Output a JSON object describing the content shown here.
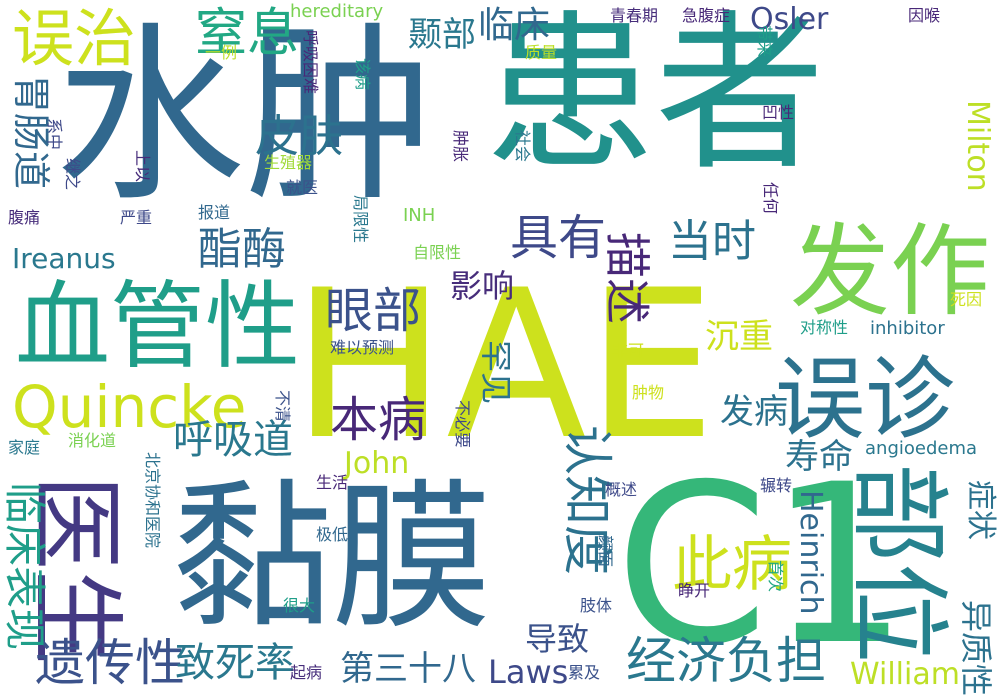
{
  "words": [
    {
      "t": "HAE",
      "c": "#cde11d"
    },
    {
      "t": "患者",
      "c": "#21918c"
    },
    {
      "t": "水肿",
      "c": "#31688e"
    },
    {
      "t": "黏膜",
      "c": "#31688e"
    },
    {
      "t": "C1",
      "c": "#35b779"
    },
    {
      "t": "部位",
      "c": "#26828e"
    },
    {
      "t": "误诊",
      "c": "#2c728e"
    },
    {
      "t": "发作",
      "c": "#7ad151"
    },
    {
      "t": "血管性",
      "c": "#1f9e89"
    },
    {
      "t": "医生",
      "c": "#443983"
    },
    {
      "t": "Quincke",
      "c": "#cde11d"
    },
    {
      "t": "误治",
      "c": "#cde11d"
    },
    {
      "t": "遗传性",
      "c": "#3b528b"
    },
    {
      "t": "认知度",
      "c": "#2c728e"
    },
    {
      "t": "此病",
      "c": "#cde11d"
    },
    {
      "t": "经济负担",
      "c": "#2a788e"
    },
    {
      "t": "眼部",
      "c": "#3b528b"
    },
    {
      "t": "本病",
      "c": "#482878"
    },
    {
      "t": "临床表现",
      "c": "#1f9e89"
    },
    {
      "t": "胃肠道",
      "c": "#31688e"
    },
    {
      "t": "窒息",
      "c": "#22a884"
    },
    {
      "t": "皮肤",
      "c": "#2c728e"
    },
    {
      "t": "酯酶",
      "c": "#31688e"
    },
    {
      "t": "具有",
      "c": "#3e4989"
    },
    {
      "t": "描述",
      "c": "#482878"
    },
    {
      "t": "当时",
      "c": "#2c728e"
    },
    {
      "t": "呼吸道",
      "c": "#2a788e"
    },
    {
      "t": "致死率",
      "c": "#2a788e"
    },
    {
      "t": "第三十八",
      "c": "#31688e"
    },
    {
      "t": "Laws",
      "c": "#3e4989"
    },
    {
      "t": "William",
      "c": "#bddf26"
    },
    {
      "t": "Heinrich",
      "c": "#31688e"
    },
    {
      "t": "Milton",
      "c": "#bddf26"
    },
    {
      "t": "Osler",
      "c": "#3e4989"
    },
    {
      "t": "John",
      "c": "#bddf26"
    },
    {
      "t": "Ireanus",
      "c": "#2a788e"
    },
    {
      "t": "临床",
      "c": "#31688e"
    },
    {
      "t": "颞部",
      "c": "#2a788e"
    },
    {
      "t": "影响",
      "c": "#472d7b"
    },
    {
      "t": "罕见",
      "c": "#2c728e"
    },
    {
      "t": "沉重",
      "c": "#cde11d"
    },
    {
      "t": "发病",
      "c": "#2c728e"
    },
    {
      "t": "寿命",
      "c": "#2c728e"
    },
    {
      "t": "导致",
      "c": "#3b528b"
    },
    {
      "t": "症状",
      "c": "#2c728e"
    },
    {
      "t": "异质性",
      "c": "#2c728e"
    },
    {
      "t": "angioedema",
      "c": "#2a788e"
    },
    {
      "t": "inhibitor",
      "c": "#2c728e"
    },
    {
      "t": "hereditary",
      "c": "#7ad151"
    },
    {
      "t": "青春期",
      "c": "#472d7b"
    },
    {
      "t": "急腹症",
      "c": "#482878"
    },
    {
      "t": "因喉",
      "c": "#482878"
    },
    {
      "t": "质量",
      "c": "#bddf26"
    },
    {
      "t": "一例",
      "c": "#bddf26"
    },
    {
      "t": "呼吸困难",
      "c": "#482878"
    },
    {
      "t": "该病",
      "c": "#1f9e89"
    },
    {
      "t": "带来",
      "c": "#1f9e89"
    },
    {
      "t": "凹性",
      "c": "#482878"
    },
    {
      "t": "社会",
      "c": "#2a788e"
    },
    {
      "t": "肿胀",
      "c": "#482878"
    },
    {
      "t": "系中",
      "c": "#3e4989"
    },
    {
      "t": "继之",
      "c": "#3e4989"
    },
    {
      "t": "上以",
      "c": "#472d7b"
    },
    {
      "t": "生殖器",
      "c": "#a0da39"
    },
    {
      "t": "就医",
      "c": "#3b528b"
    },
    {
      "t": "任何",
      "c": "#482878"
    },
    {
      "t": "腹痛",
      "c": "#472d7b"
    },
    {
      "t": "严重",
      "c": "#3e4989"
    },
    {
      "t": "报道",
      "c": "#31688e"
    },
    {
      "t": "局限性",
      "c": "#2a788e"
    },
    {
      "t": "INH",
      "c": "#7ad151"
    },
    {
      "t": "自限性",
      "c": "#7ad151"
    },
    {
      "t": "死因",
      "c": "#cde11d"
    },
    {
      "t": "对称性",
      "c": "#1f9e89"
    },
    {
      "t": "难以预测",
      "c": "#3b528b"
    },
    {
      "t": "非可",
      "c": "#cde11d"
    },
    {
      "t": "不清",
      "c": "#3b528b"
    },
    {
      "t": "肿物",
      "c": "#cde11d"
    },
    {
      "t": "不必要",
      "c": "#3e4989"
    },
    {
      "t": "家庭",
      "c": "#2a788e"
    },
    {
      "t": "消化道",
      "c": "#7ad151"
    },
    {
      "t": "北京协和医院",
      "c": "#2c728e"
    },
    {
      "t": "生活",
      "c": "#482878"
    },
    {
      "t": "概述",
      "c": "#3e4989"
    },
    {
      "t": "辗转",
      "c": "#3e4989"
    },
    {
      "t": "极低",
      "c": "#31688e"
    },
    {
      "t": "颜面",
      "c": "#31688e"
    },
    {
      "t": "首次",
      "c": "#22a884"
    },
    {
      "t": "睁开",
      "c": "#482878"
    },
    {
      "t": "肢体",
      "c": "#3b528b"
    },
    {
      "t": "很大",
      "c": "#1f9e89"
    },
    {
      "t": "起病",
      "c": "#472d7b"
    },
    {
      "t": "累及",
      "c": "#3b528b"
    }
  ]
}
